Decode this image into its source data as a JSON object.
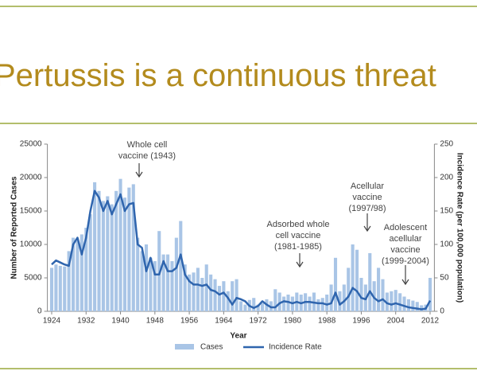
{
  "chart_data": {
    "type": "bar",
    "title": "Pertussis is a continuous threat",
    "x_label": "Year",
    "y_label": "Number of Reported Cases",
    "y2_label": "Incidence Rate (per 100,000 population)",
    "x": [
      1924,
      1925,
      1926,
      1927,
      1928,
      1929,
      1930,
      1931,
      1932,
      1933,
      1934,
      1935,
      1936,
      1937,
      1938,
      1939,
      1940,
      1941,
      1942,
      1943,
      1944,
      1945,
      1946,
      1947,
      1948,
      1949,
      1950,
      1951,
      1952,
      1953,
      1954,
      1955,
      1956,
      1957,
      1958,
      1959,
      1960,
      1961,
      1962,
      1963,
      1964,
      1965,
      1966,
      1967,
      1968,
      1969,
      1970,
      1971,
      1972,
      1973,
      1974,
      1975,
      1976,
      1977,
      1978,
      1979,
      1980,
      1981,
      1982,
      1983,
      1984,
      1985,
      1986,
      1987,
      1988,
      1989,
      1990,
      1991,
      1992,
      1993,
      1994,
      1995,
      1996,
      1997,
      1998,
      1999,
      2000,
      2001,
      2002,
      2003,
      2004,
      2005,
      2006,
      2007,
      2008,
      2009,
      2010,
      2011,
      2012
    ],
    "series": [
      {
        "name": "Cases",
        "type": "bar",
        "color": "#a9c5e6",
        "axis": "y",
        "values": [
          6500,
          7000,
          6800,
          6700,
          9000,
          11000,
          10500,
          11500,
          12500,
          14500,
          19300,
          18000,
          16500,
          17200,
          16000,
          18000,
          19800,
          17000,
          18500,
          19000,
          11000,
          9000,
          10000,
          8000,
          7500,
          12000,
          8500,
          8500,
          7500,
          11000,
          13500,
          7000,
          5500,
          5800,
          6500,
          5000,
          7000,
          5500,
          4800,
          3800,
          4500,
          3000,
          4500,
          4800,
          1500,
          1000,
          1700,
          2000,
          1000,
          1200,
          1800,
          1500,
          3300,
          2800,
          2200,
          2500,
          2200,
          2800,
          2500,
          2700,
          2200,
          2800,
          1800,
          2000,
          2500,
          4000,
          8000,
          3000,
          4000,
          6500,
          10000,
          9200,
          5000,
          4000,
          8700,
          4500,
          6500,
          4800,
          2800,
          3000,
          3200,
          2700,
          2200,
          1800,
          1600,
          1400,
          900,
          1000,
          5000
        ]
      },
      {
        "name": "Incidence Rate",
        "type": "line",
        "color": "#2f65ae",
        "axis": "y2",
        "values": [
          70,
          76,
          73,
          70,
          68,
          100,
          110,
          85,
          110,
          150,
          180,
          170,
          150,
          165,
          145,
          160,
          175,
          150,
          160,
          162,
          100,
          95,
          60,
          80,
          55,
          55,
          75,
          60,
          60,
          65,
          85,
          55,
          45,
          40,
          40,
          38,
          40,
          32,
          30,
          25,
          28,
          20,
          10,
          20,
          18,
          15,
          8,
          5,
          8,
          15,
          10,
          6,
          6,
          12,
          15,
          14,
          12,
          14,
          12,
          14,
          14,
          13,
          12,
          12,
          10,
          12,
          28,
          10,
          15,
          22,
          35,
          30,
          20,
          18,
          30,
          20,
          15,
          18,
          12,
          10,
          12,
          10,
          8,
          6,
          5,
          4,
          3,
          4,
          16
        ]
      }
    ],
    "xlim": [
      1923,
      2013
    ],
    "xticks": [
      1924,
      1932,
      1940,
      1948,
      1956,
      1964,
      1972,
      1980,
      1988,
      1996,
      2004,
      2012
    ],
    "ylim": [
      0,
      25000
    ],
    "yticks": [
      0,
      5000,
      10000,
      15000,
      20000,
      25000
    ],
    "y2lim": [
      0,
      250
    ],
    "y2ticks": [
      0,
      50,
      100,
      150,
      200,
      250
    ],
    "annotations": [
      {
        "lines": [
          "Whole cell",
          "vaccine (1943)"
        ]
      },
      {
        "lines": [
          "Adsorbed whole",
          "cell vaccine",
          "(1981-1985)"
        ]
      },
      {
        "lines": [
          "Acellular",
          "vaccine",
          "(1997/98)"
        ]
      },
      {
        "lines": [
          "Adolescent",
          "acellular",
          "vaccine",
          "(1999-2004)"
        ]
      }
    ]
  }
}
